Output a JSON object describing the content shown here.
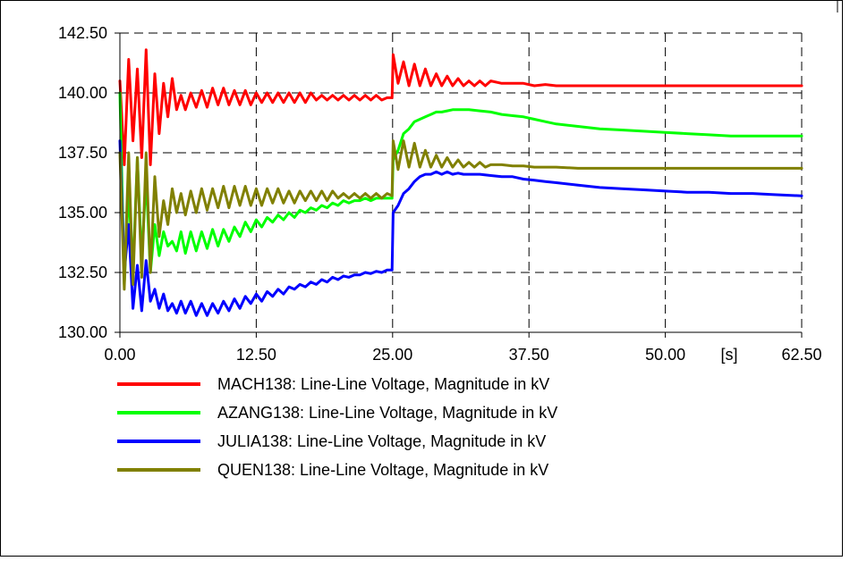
{
  "chart_data": {
    "type": "line",
    "title": "",
    "xlabel": "",
    "ylabel": "",
    "x_unit": "[s]",
    "xlim": [
      0,
      62.5
    ],
    "ylim": [
      130,
      142.5
    ],
    "grid": true,
    "legend_placement": "below-plot",
    "x_tick_labels": [
      "0.00",
      "12.50",
      "25.00",
      "37.50",
      "50.00",
      "62.50"
    ],
    "x_tick_values": [
      0,
      12.5,
      25,
      37.5,
      50,
      62.5
    ],
    "y_tick_labels": [
      "130.00",
      "132.50",
      "135.00",
      "137.50",
      "140.00",
      "142.50"
    ],
    "y_tick_values": [
      130,
      132.5,
      135,
      137.5,
      140,
      142.5
    ],
    "series": [
      {
        "name": "MACH138: Line-Line Voltage, Magnitude in kV",
        "color": "#ff0000",
        "x": [
          0,
          0.4,
          0.8,
          1.2,
          1.6,
          2.0,
          2.4,
          2.8,
          3.2,
          3.6,
          4.0,
          4.4,
          4.8,
          5.2,
          5.6,
          6.0,
          6.5,
          7.0,
          7.5,
          8.0,
          8.5,
          9.0,
          9.5,
          10,
          10.5,
          11,
          11.5,
          12,
          12.5,
          13,
          13.5,
          14,
          14.5,
          15,
          15.5,
          16,
          16.5,
          17,
          17.5,
          18,
          18.5,
          19,
          19.5,
          20,
          20.5,
          21,
          21.5,
          22,
          22.5,
          23,
          23.5,
          24,
          24.5,
          24.95,
          25.05,
          25.5,
          26,
          26.5,
          27,
          27.5,
          28,
          28.5,
          29,
          29.5,
          30,
          30.5,
          31,
          31.5,
          32,
          32.5,
          33,
          33.5,
          34,
          35,
          36,
          37,
          38,
          39,
          40,
          42,
          44,
          46,
          48,
          50,
          52,
          54,
          56,
          58,
          60,
          62.5
        ],
        "y": [
          140.5,
          137.0,
          141.4,
          138.0,
          141.0,
          137.3,
          141.8,
          137.0,
          140.8,
          138.3,
          140.4,
          139.0,
          140.6,
          139.3,
          139.9,
          139.3,
          140.0,
          139.4,
          140.1,
          139.4,
          140.2,
          139.5,
          140.2,
          139.5,
          140.1,
          139.5,
          140.1,
          139.5,
          140.0,
          139.6,
          140.0,
          139.6,
          140.0,
          139.6,
          140.0,
          139.6,
          140.0,
          139.6,
          140.0,
          139.7,
          139.9,
          139.7,
          139.9,
          139.7,
          139.9,
          139.7,
          139.9,
          139.7,
          139.9,
          139.7,
          139.9,
          139.7,
          139.8,
          139.8,
          141.6,
          140.4,
          141.3,
          140.3,
          141.2,
          140.3,
          141.0,
          140.3,
          140.8,
          140.3,
          140.7,
          140.3,
          140.6,
          140.3,
          140.5,
          140.3,
          140.5,
          140.3,
          140.5,
          140.4,
          140.4,
          140.4,
          140.3,
          140.35,
          140.3,
          140.3,
          140.3,
          140.3,
          140.3,
          140.3,
          140.3,
          140.3,
          140.3,
          140.3,
          140.3,
          140.3
        ]
      },
      {
        "name": "AZANG138: Line-Line Voltage, Magnitude in kV",
        "color": "#00ff00",
        "x": [
          0,
          0.4,
          0.8,
          1.2,
          1.6,
          2.0,
          2.4,
          2.8,
          3.2,
          3.6,
          4.0,
          4.4,
          4.8,
          5.2,
          5.6,
          6.0,
          6.5,
          7.0,
          7.5,
          8.0,
          8.5,
          9.0,
          9.5,
          10,
          10.5,
          11,
          11.5,
          12,
          12.5,
          13,
          13.5,
          14,
          14.5,
          15,
          15.5,
          16,
          16.5,
          17,
          17.5,
          18,
          18.5,
          19,
          19.5,
          20,
          20.5,
          21,
          21.5,
          22,
          22.5,
          23,
          23.5,
          24,
          24.5,
          24.95,
          25.05,
          25.5,
          26,
          26.5,
          27,
          27.5,
          28,
          28.5,
          29,
          29.5,
          30,
          30.5,
          31,
          31.5,
          32,
          33,
          34,
          35,
          36,
          37,
          38,
          39,
          40,
          42,
          44,
          46,
          48,
          50,
          52,
          54,
          56,
          58,
          60,
          62.5
        ],
        "y": [
          140.0,
          132.0,
          136.0,
          132.5,
          137.3,
          133.0,
          136.5,
          132.5,
          134.5,
          133.2,
          134.2,
          133.6,
          133.8,
          133.4,
          134.2,
          133.3,
          134.2,
          133.4,
          134.2,
          133.5,
          134.3,
          133.6,
          134.3,
          133.8,
          134.4,
          134.0,
          134.6,
          134.2,
          134.7,
          134.4,
          134.8,
          134.6,
          134.9,
          134.7,
          135.0,
          134.8,
          135.1,
          135.0,
          135.2,
          135.1,
          135.3,
          135.2,
          135.4,
          135.3,
          135.5,
          135.4,
          135.5,
          135.5,
          135.6,
          135.5,
          135.6,
          135.6,
          135.6,
          135.6,
          137.2,
          137.6,
          138.3,
          138.5,
          138.8,
          138.9,
          139.0,
          139.1,
          139.2,
          139.2,
          139.25,
          139.3,
          139.3,
          139.3,
          139.3,
          139.25,
          139.2,
          139.1,
          139.05,
          139.0,
          138.9,
          138.8,
          138.7,
          138.6,
          138.5,
          138.45,
          138.4,
          138.35,
          138.3,
          138.25,
          138.2,
          138.2,
          138.2,
          138.2
        ]
      },
      {
        "name": "JULIA138: Line-Line Voltage, Magnitude in kV",
        "color": "#0000ff",
        "x": [
          0,
          0.4,
          0.8,
          1.2,
          1.6,
          2.0,
          2.4,
          2.8,
          3.2,
          3.6,
          4.0,
          4.4,
          4.8,
          5.2,
          5.6,
          6.0,
          6.5,
          7.0,
          7.5,
          8.0,
          8.5,
          9.0,
          9.5,
          10,
          10.5,
          11,
          11.5,
          12,
          12.5,
          13,
          13.5,
          14,
          14.5,
          15,
          15.5,
          16,
          16.5,
          17,
          17.5,
          18,
          18.5,
          19,
          19.5,
          20,
          20.5,
          21,
          21.5,
          22,
          22.5,
          23,
          23.5,
          24,
          24.5,
          24.95,
          25.05,
          25.5,
          26,
          26.5,
          27,
          27.5,
          28,
          28.5,
          29,
          29.5,
          30,
          30.5,
          31,
          31.5,
          32,
          33,
          34,
          35,
          36,
          37,
          38,
          39,
          40,
          42,
          44,
          46,
          48,
          50,
          52,
          54,
          56,
          58,
          60,
          62.5
        ],
        "y": [
          138.0,
          132.5,
          134.5,
          131.0,
          132.8,
          130.9,
          133.0,
          131.3,
          131.8,
          131.0,
          131.6,
          130.9,
          131.2,
          130.8,
          131.3,
          130.8,
          131.3,
          130.7,
          131.2,
          130.7,
          131.2,
          130.8,
          131.3,
          130.9,
          131.4,
          131.0,
          131.5,
          131.2,
          131.6,
          131.3,
          131.7,
          131.5,
          131.8,
          131.6,
          131.9,
          131.8,
          132.0,
          131.9,
          132.1,
          132.0,
          132.2,
          132.1,
          132.3,
          132.2,
          132.35,
          132.3,
          132.4,
          132.4,
          132.5,
          132.45,
          132.55,
          132.5,
          132.6,
          132.6,
          135.0,
          135.3,
          135.8,
          136.0,
          136.3,
          136.5,
          136.6,
          136.6,
          136.7,
          136.6,
          136.7,
          136.6,
          136.65,
          136.6,
          136.6,
          136.6,
          136.55,
          136.5,
          136.5,
          136.4,
          136.35,
          136.3,
          136.25,
          136.15,
          136.05,
          136.0,
          135.95,
          135.9,
          135.85,
          135.85,
          135.8,
          135.8,
          135.75,
          135.7
        ]
      },
      {
        "name": "QUEN138: Line-Line Voltage, Magnitude in kV",
        "color": "#808000",
        "x": [
          0,
          0.4,
          0.8,
          1.2,
          1.6,
          2.0,
          2.4,
          2.8,
          3.2,
          3.6,
          4.0,
          4.4,
          4.8,
          5.2,
          5.6,
          6.0,
          6.5,
          7.0,
          7.5,
          8.0,
          8.5,
          9.0,
          9.5,
          10,
          10.5,
          11,
          11.5,
          12,
          12.5,
          13,
          13.5,
          14,
          14.5,
          15,
          15.5,
          16,
          16.5,
          17,
          17.5,
          18,
          18.5,
          19,
          19.5,
          20,
          20.5,
          21,
          21.5,
          22,
          22.5,
          23,
          23.5,
          24,
          24.5,
          24.95,
          25.05,
          25.5,
          26,
          26.5,
          27,
          27.5,
          28,
          28.5,
          29,
          29.5,
          30,
          30.5,
          31,
          31.5,
          32,
          32.5,
          33,
          33.5,
          34,
          35,
          36,
          37,
          38,
          39,
          40,
          42,
          44,
          46,
          48,
          50,
          52,
          54,
          56,
          58,
          60,
          62.5
        ],
        "y": [
          137.5,
          131.8,
          137.5,
          132.0,
          137.3,
          132.3,
          137.5,
          132.5,
          136.5,
          134.0,
          135.5,
          134.5,
          136.0,
          135.0,
          135.8,
          134.9,
          135.9,
          135.0,
          136.0,
          135.1,
          136.0,
          135.2,
          136.1,
          135.2,
          136.1,
          135.3,
          136.1,
          135.3,
          136.0,
          135.3,
          136.0,
          135.4,
          136.0,
          135.4,
          135.9,
          135.4,
          135.9,
          135.5,
          135.9,
          135.5,
          135.9,
          135.5,
          135.9,
          135.6,
          135.8,
          135.6,
          135.8,
          135.6,
          135.8,
          135.6,
          135.8,
          135.6,
          135.8,
          135.7,
          138.0,
          136.8,
          138.0,
          136.9,
          137.9,
          136.9,
          137.6,
          136.9,
          137.4,
          136.9,
          137.3,
          136.9,
          137.2,
          136.9,
          137.1,
          136.9,
          137.1,
          136.9,
          137.0,
          137.0,
          136.95,
          136.95,
          136.9,
          136.9,
          136.9,
          136.85,
          136.85,
          136.85,
          136.85,
          136.85,
          136.85,
          136.85,
          136.85,
          136.85,
          136.85,
          136.85
        ]
      }
    ]
  }
}
